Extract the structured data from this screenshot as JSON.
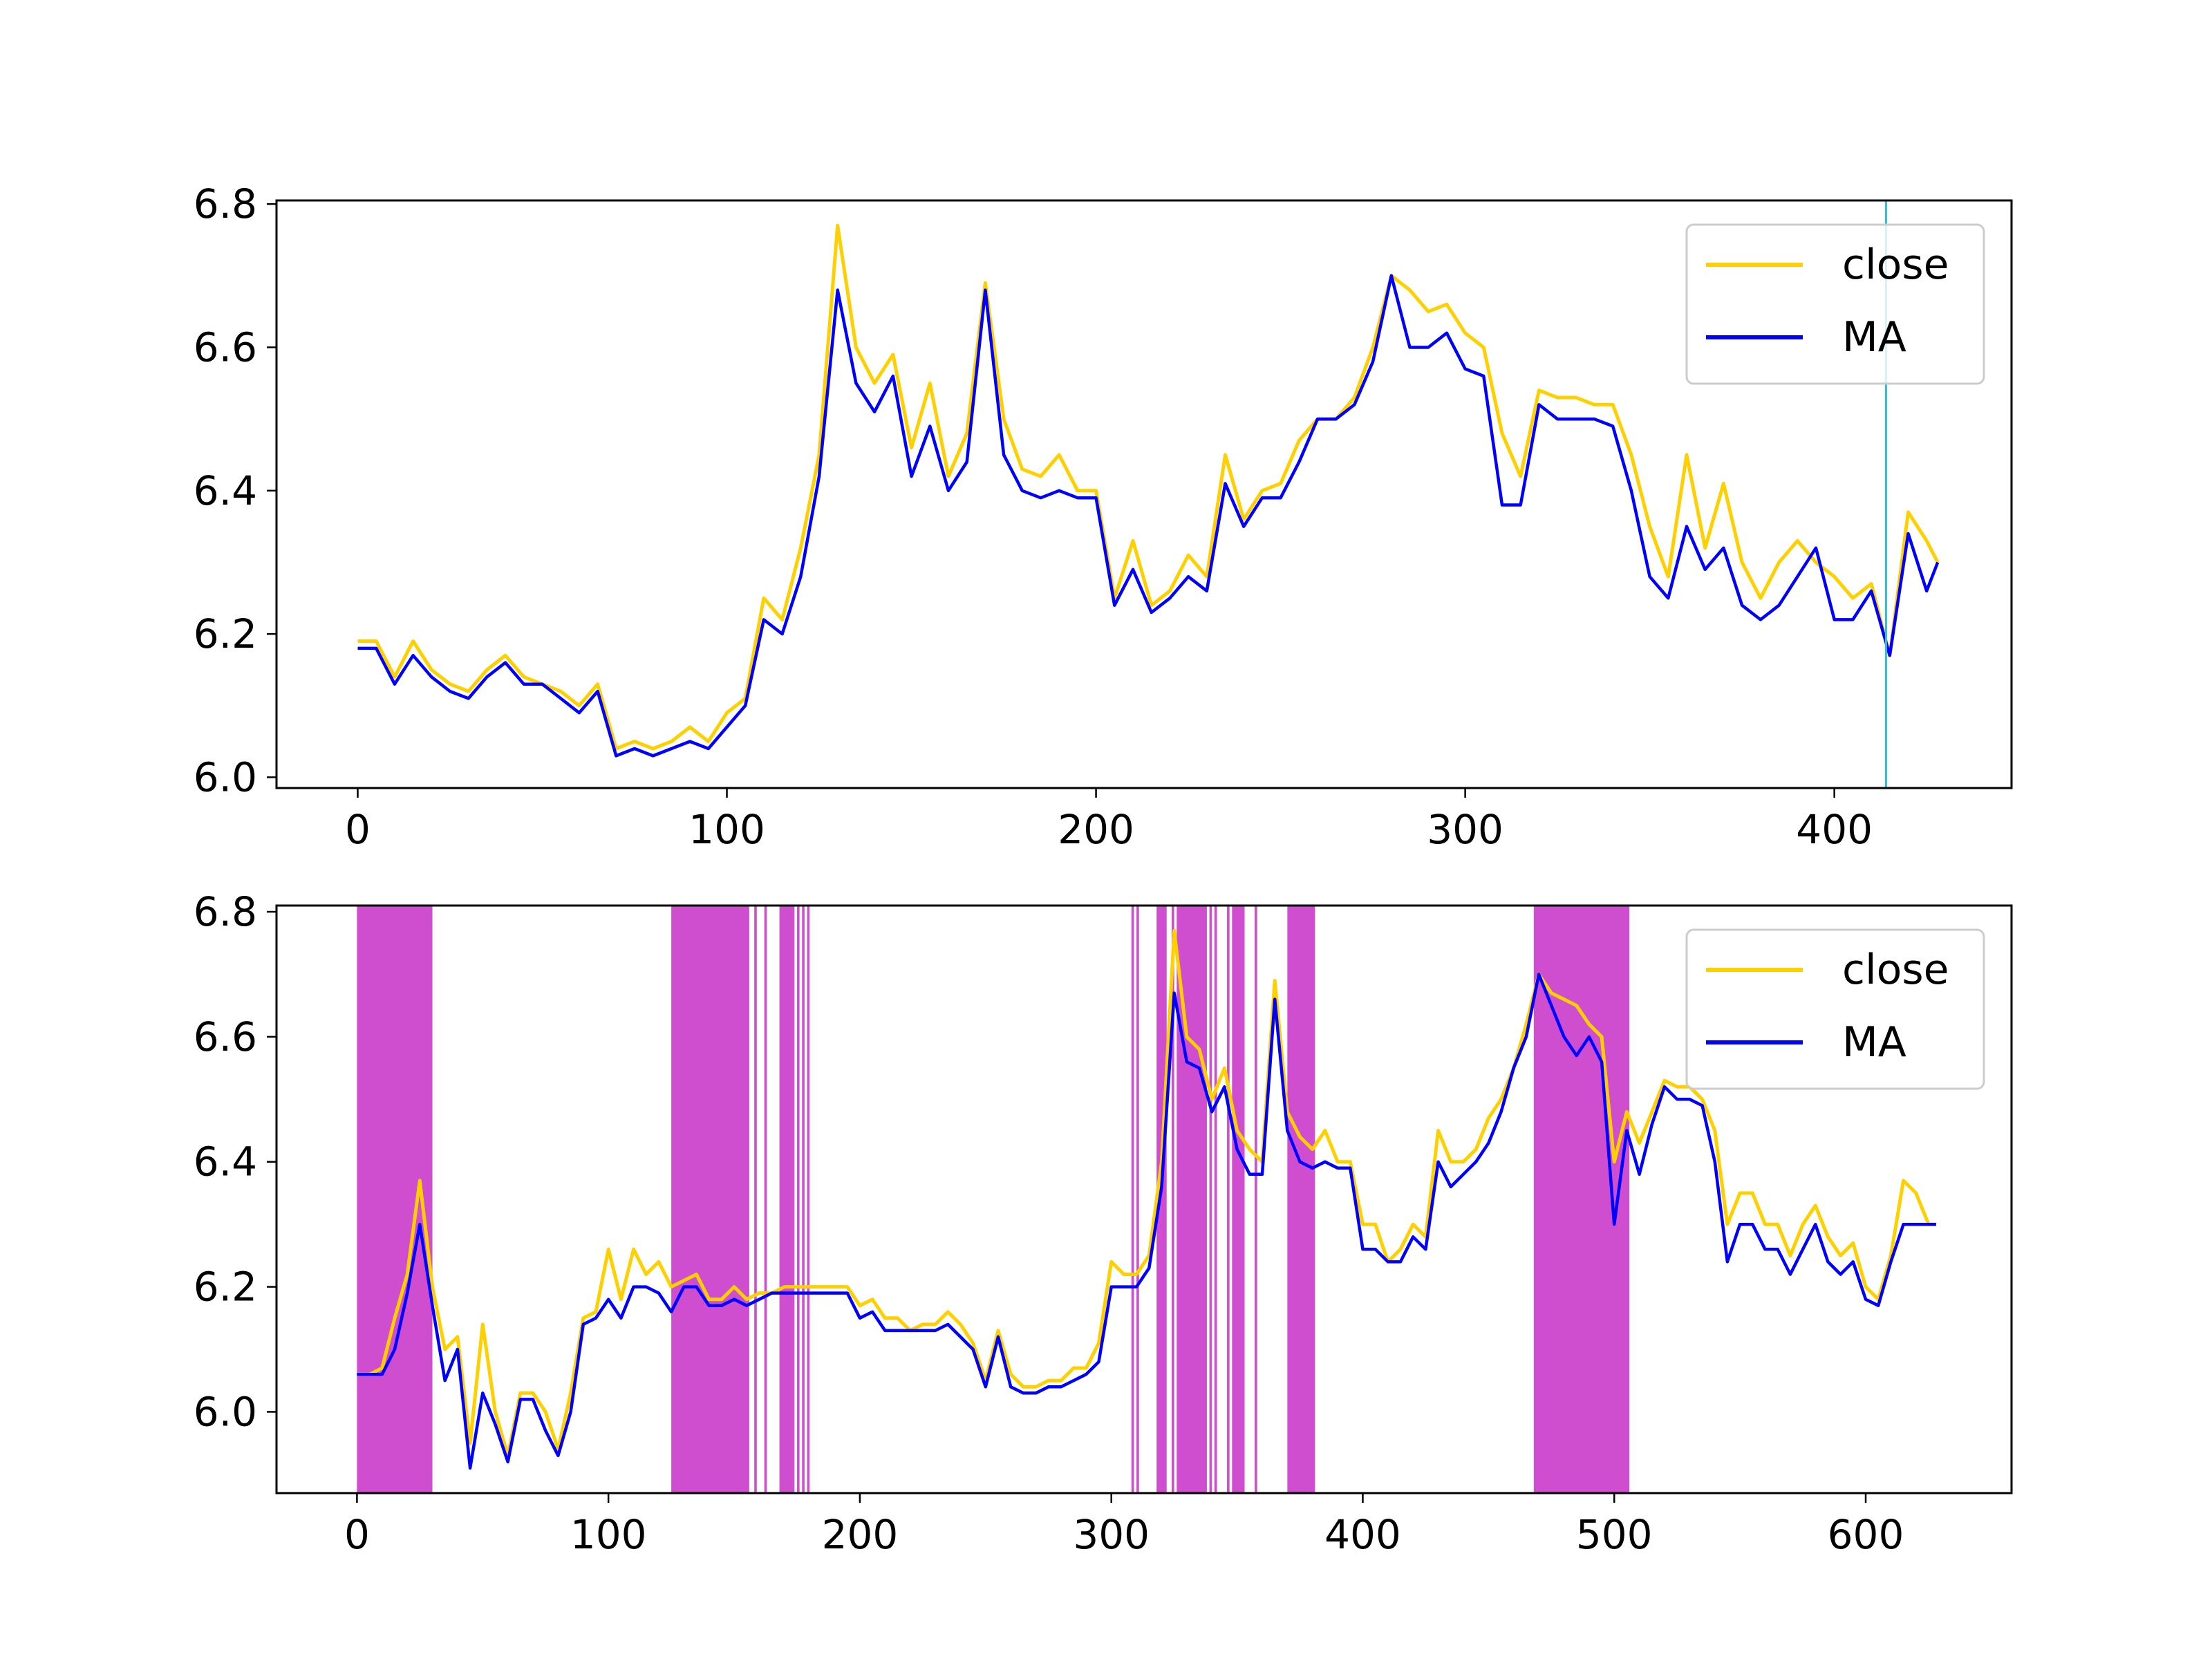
{
  "chart_data": [
    {
      "type": "line",
      "xlim": [
        -22,
        448
      ],
      "ylim": [
        5.985,
        6.805
      ],
      "xticks": [
        0,
        100,
        200,
        300,
        400
      ],
      "yticks": [
        6.0,
        6.2,
        6.4,
        6.6,
        6.8
      ],
      "xtick_labels": [
        "0",
        "100",
        "200",
        "300",
        "400"
      ],
      "ytick_labels": [
        "6.0",
        "6.2",
        "6.4",
        "6.6",
        "6.8"
      ],
      "vline_x": 414,
      "legend": {
        "position": "upper right",
        "entries": [
          "close",
          "MA"
        ]
      },
      "grid": false,
      "x": [
        0,
        5,
        10,
        15,
        20,
        25,
        30,
        35,
        40,
        45,
        50,
        55,
        60,
        65,
        70,
        75,
        80,
        85,
        90,
        95,
        100,
        105,
        110,
        115,
        120,
        125,
        130,
        135,
        140,
        145,
        150,
        155,
        160,
        165,
        170,
        175,
        180,
        185,
        190,
        195,
        200,
        205,
        210,
        215,
        220,
        225,
        230,
        235,
        240,
        245,
        250,
        255,
        260,
        265,
        270,
        275,
        280,
        285,
        290,
        295,
        300,
        305,
        310,
        315,
        320,
        325,
        330,
        335,
        340,
        345,
        350,
        355,
        360,
        365,
        370,
        375,
        380,
        385,
        390,
        395,
        400,
        405,
        410,
        415,
        420,
        425,
        428
      ],
      "series": [
        {
          "name": "close",
          "values": [
            6.19,
            6.19,
            6.14,
            6.19,
            6.15,
            6.13,
            6.12,
            6.15,
            6.17,
            6.14,
            6.13,
            6.12,
            6.1,
            6.13,
            6.04,
            6.05,
            6.04,
            6.05,
            6.07,
            6.05,
            6.09,
            6.11,
            6.25,
            6.22,
            6.32,
            6.45,
            6.77,
            6.6,
            6.55,
            6.59,
            6.46,
            6.55,
            6.42,
            6.48,
            6.69,
            6.5,
            6.43,
            6.42,
            6.45,
            6.4,
            6.4,
            6.25,
            6.33,
            6.24,
            6.26,
            6.31,
            6.28,
            6.45,
            6.36,
            6.4,
            6.41,
            6.47,
            6.5,
            6.5,
            6.53,
            6.6,
            6.7,
            6.68,
            6.65,
            6.66,
            6.62,
            6.6,
            6.48,
            6.42,
            6.54,
            6.53,
            6.53,
            6.52,
            6.52,
            6.45,
            6.35,
            6.28,
            6.45,
            6.32,
            6.41,
            6.3,
            6.25,
            6.3,
            6.33,
            6.3,
            6.28,
            6.25,
            6.27,
            6.17,
            6.37,
            6.33,
            6.3
          ]
        },
        {
          "name": "MA",
          "values": [
            6.18,
            6.18,
            6.13,
            6.17,
            6.14,
            6.12,
            6.11,
            6.14,
            6.16,
            6.13,
            6.13,
            6.11,
            6.09,
            6.12,
            6.03,
            6.04,
            6.03,
            6.04,
            6.05,
            6.04,
            6.07,
            6.1,
            6.22,
            6.2,
            6.28,
            6.42,
            6.68,
            6.55,
            6.51,
            6.56,
            6.42,
            6.49,
            6.4,
            6.44,
            6.68,
            6.45,
            6.4,
            6.39,
            6.4,
            6.39,
            6.39,
            6.24,
            6.29,
            6.23,
            6.25,
            6.28,
            6.26,
            6.41,
            6.35,
            6.39,
            6.39,
            6.44,
            6.5,
            6.5,
            6.52,
            6.58,
            6.7,
            6.6,
            6.6,
            6.62,
            6.57,
            6.56,
            6.38,
            6.38,
            6.52,
            6.5,
            6.5,
            6.5,
            6.49,
            6.4,
            6.28,
            6.25,
            6.35,
            6.29,
            6.32,
            6.24,
            6.22,
            6.24,
            6.28,
            6.32,
            6.22,
            6.22,
            6.26,
            6.17,
            6.34,
            6.26,
            6.3
          ]
        }
      ]
    },
    {
      "type": "line",
      "xlim": [
        -32,
        658
      ],
      "ylim": [
        5.87,
        6.81
      ],
      "xticks": [
        0,
        100,
        200,
        300,
        400,
        500,
        600
      ],
      "yticks": [
        6.0,
        6.2,
        6.4,
        6.6,
        6.8
      ],
      "xtick_labels": [
        "0",
        "100",
        "200",
        "300",
        "400",
        "500",
        "600"
      ],
      "ytick_labels": [
        "6.0",
        "6.2",
        "6.4",
        "6.6",
        "6.8"
      ],
      "highlight_color": "#cc44cc",
      "highlight_spans": [
        [
          0,
          30
        ],
        [
          125,
          156
        ],
        [
          158,
          159
        ],
        [
          162,
          163
        ],
        [
          168,
          174
        ],
        [
          175,
          176
        ],
        [
          177,
          178
        ],
        [
          179,
          180
        ],
        [
          308,
          309
        ],
        [
          310,
          311
        ],
        [
          318,
          322
        ],
        [
          324,
          325
        ],
        [
          326,
          338
        ],
        [
          339,
          340
        ],
        [
          341,
          342
        ],
        [
          346,
          347
        ],
        [
          348,
          353
        ],
        [
          357,
          358
        ],
        [
          370,
          381
        ],
        [
          468,
          506
        ]
      ],
      "legend": {
        "position": "upper right",
        "entries": [
          "close",
          "MA"
        ]
      },
      "grid": false,
      "x": [
        0,
        5,
        10,
        15,
        20,
        25,
        30,
        35,
        40,
        45,
        50,
        55,
        60,
        65,
        70,
        75,
        80,
        85,
        90,
        95,
        100,
        105,
        110,
        115,
        120,
        125,
        130,
        135,
        140,
        145,
        150,
        155,
        160,
        165,
        170,
        175,
        180,
        185,
        190,
        195,
        200,
        205,
        210,
        215,
        220,
        225,
        230,
        235,
        240,
        245,
        250,
        255,
        260,
        265,
        270,
        275,
        280,
        285,
        290,
        295,
        300,
        305,
        310,
        315,
        320,
        325,
        330,
        335,
        340,
        345,
        350,
        355,
        360,
        365,
        370,
        375,
        380,
        385,
        390,
        395,
        400,
        405,
        410,
        415,
        420,
        425,
        430,
        435,
        440,
        445,
        450,
        455,
        460,
        465,
        470,
        475,
        480,
        485,
        490,
        495,
        500,
        505,
        510,
        515,
        520,
        525,
        530,
        535,
        540,
        545,
        550,
        555,
        560,
        565,
        570,
        575,
        580,
        585,
        590,
        595,
        600,
        605,
        610,
        615,
        620,
        625,
        628
      ],
      "series": [
        {
          "name": "close",
          "values": [
            6.06,
            6.06,
            6.07,
            6.15,
            6.22,
            6.37,
            6.2,
            6.1,
            6.12,
            5.95,
            6.14,
            6.0,
            5.93,
            6.03,
            6.03,
            6.0,
            5.94,
            6.03,
            6.15,
            6.16,
            6.26,
            6.18,
            6.26,
            6.22,
            6.24,
            6.2,
            6.21,
            6.22,
            6.18,
            6.18,
            6.2,
            6.18,
            6.19,
            6.19,
            6.2,
            6.2,
            6.2,
            6.2,
            6.2,
            6.2,
            6.17,
            6.18,
            6.15,
            6.15,
            6.13,
            6.14,
            6.14,
            6.16,
            6.14,
            6.11,
            6.05,
            6.13,
            6.06,
            6.04,
            6.04,
            6.05,
            6.05,
            6.07,
            6.07,
            6.11,
            6.24,
            6.22,
            6.22,
            6.25,
            6.4,
            6.77,
            6.6,
            6.58,
            6.5,
            6.55,
            6.45,
            6.42,
            6.4,
            6.69,
            6.48,
            6.44,
            6.42,
            6.45,
            6.4,
            6.4,
            6.3,
            6.3,
            6.24,
            6.26,
            6.3,
            6.28,
            6.45,
            6.4,
            6.4,
            6.42,
            6.47,
            6.5,
            6.55,
            6.62,
            6.7,
            6.67,
            6.66,
            6.65,
            6.62,
            6.6,
            6.4,
            6.48,
            6.43,
            6.48,
            6.53,
            6.52,
            6.52,
            6.5,
            6.45,
            6.3,
            6.35,
            6.35,
            6.3,
            6.3,
            6.25,
            6.3,
            6.33,
            6.28,
            6.25,
            6.27,
            6.2,
            6.18,
            6.25,
            6.37,
            6.35,
            6.3,
            6.3
          ]
        },
        {
          "name": "MA",
          "values": [
            6.06,
            6.06,
            6.06,
            6.1,
            6.19,
            6.3,
            6.17,
            6.05,
            6.1,
            5.91,
            6.03,
            5.98,
            5.92,
            6.02,
            6.02,
            5.97,
            5.93,
            6.0,
            6.14,
            6.15,
            6.18,
            6.15,
            6.2,
            6.2,
            6.19,
            6.16,
            6.2,
            6.2,
            6.17,
            6.17,
            6.18,
            6.17,
            6.18,
            6.19,
            6.19,
            6.19,
            6.19,
            6.19,
            6.19,
            6.19,
            6.15,
            6.16,
            6.13,
            6.13,
            6.13,
            6.13,
            6.13,
            6.14,
            6.12,
            6.1,
            6.04,
            6.12,
            6.04,
            6.03,
            6.03,
            6.04,
            6.04,
            6.05,
            6.06,
            6.08,
            6.2,
            6.2,
            6.2,
            6.23,
            6.36,
            6.67,
            6.56,
            6.55,
            6.48,
            6.52,
            6.42,
            6.38,
            6.38,
            6.66,
            6.45,
            6.4,
            6.39,
            6.4,
            6.39,
            6.39,
            6.26,
            6.26,
            6.24,
            6.24,
            6.28,
            6.26,
            6.4,
            6.36,
            6.38,
            6.4,
            6.43,
            6.48,
            6.55,
            6.6,
            6.7,
            6.65,
            6.6,
            6.57,
            6.6,
            6.56,
            6.3,
            6.45,
            6.38,
            6.46,
            6.52,
            6.5,
            6.5,
            6.49,
            6.4,
            6.24,
            6.3,
            6.3,
            6.26,
            6.26,
            6.22,
            6.26,
            6.3,
            6.24,
            6.22,
            6.24,
            6.18,
            6.17,
            6.24,
            6.3,
            6.3,
            6.3,
            6.3
          ]
        }
      ]
    }
  ],
  "colors": {
    "close": "#ffd000",
    "ma": "#0000ff",
    "vline": "#2bc0d6",
    "highlight": "#cc44cc",
    "axes": "#000000"
  }
}
